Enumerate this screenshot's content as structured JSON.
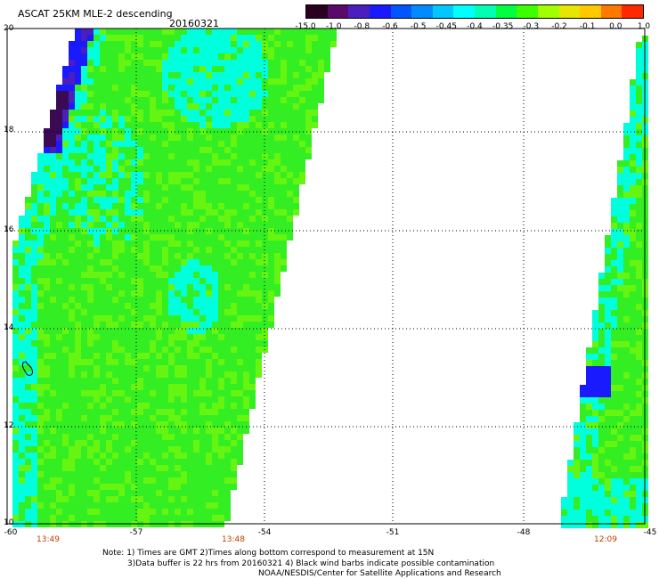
{
  "header": {
    "title": "ASCAT 25KM MLE-2 descending",
    "date": "20160321"
  },
  "colorbar": {
    "labels": [
      "-15.0",
      "-1.0",
      "-0.8",
      "-0.6",
      "-0.5",
      "-0.45",
      "-0.4",
      "-0.35",
      "-0.3",
      "-0.2",
      "-0.1",
      "0.0",
      "1.0"
    ],
    "colors": [
      "#2a0020",
      "#5a0a6a",
      "#4b1fbe",
      "#1a1aff",
      "#0055ff",
      "#008cff",
      "#00c8ff",
      "#00ffff",
      "#00ffb0",
      "#00ff40",
      "#3cff00",
      "#a0ff00",
      "#e6e600",
      "#ffc800",
      "#ff7800",
      "#ff2800"
    ]
  },
  "axes": {
    "latitudes": [
      "20",
      "18",
      "16",
      "14",
      "12",
      "10"
    ],
    "longitudes": [
      "-60",
      "-57",
      "-54",
      "-51",
      "-48",
      "-45"
    ]
  },
  "swath_times": [
    "13:49",
    "13:48",
    "12:09"
  ],
  "notes": [
    "Note: 1) Times are GMT 2)Times along bottom correspond to measurement at 15N",
    "3)Data buffer is 22 hrs from 20160321 4) Black wind barbs indicate possible contamination",
    "NOAA/NESDIS/Center for Satellite Applications and Research"
  ],
  "palette": {
    "green": "#33ee22",
    "light_green": "#66f510",
    "cyan": "#00ffdd",
    "blue": "#1a1aff",
    "purple": "#4b1fbe",
    "dark_purple": "#3a0a55"
  }
}
